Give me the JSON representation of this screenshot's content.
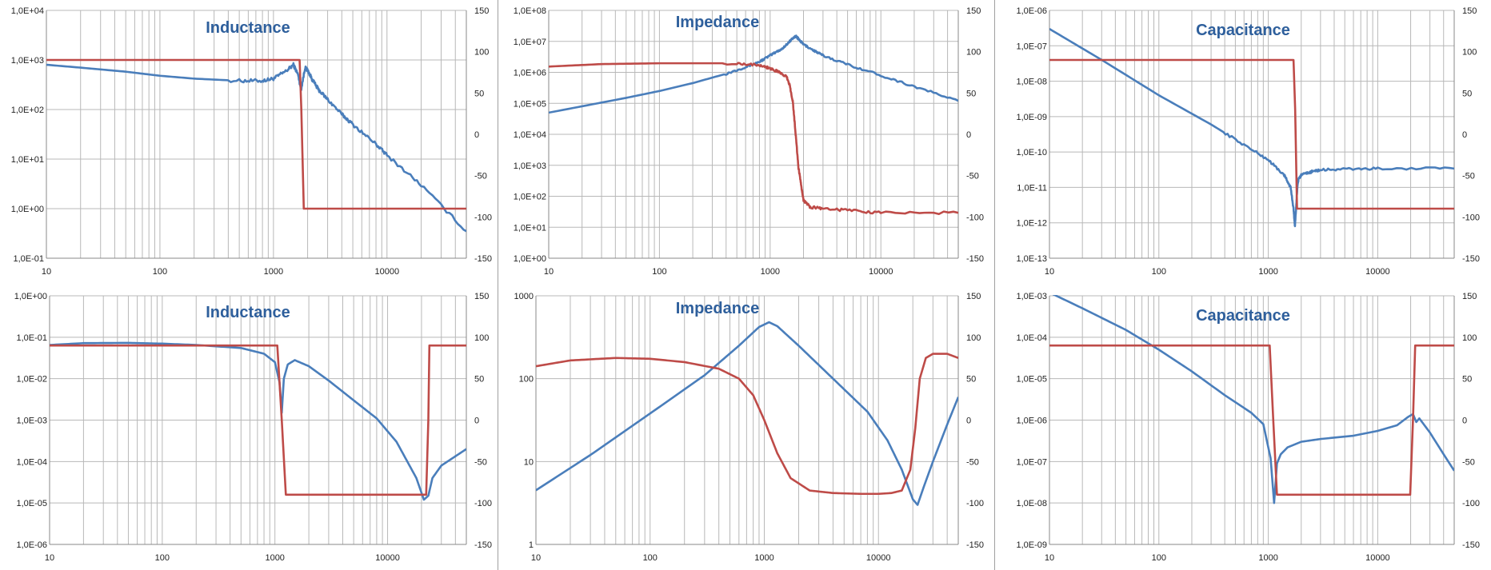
{
  "colors": {
    "magnitude": "#4a7ebb",
    "phase": "#be4b48",
    "grid": "#b8b8b8",
    "title": "#2e5f9c"
  },
  "chart_data": [
    {
      "type": "line",
      "title": "Inductance",
      "xlim": [
        10,
        50000
      ],
      "xscale": "log",
      "xticks": [
        "10",
        "100",
        "1000",
        "10000"
      ],
      "yscale": "log",
      "ylim": [
        0.1,
        10000
      ],
      "yticks": [
        "1,0E-01",
        "1,0E+00",
        "1,0E+01",
        "1,0E+02",
        "1,0E+03",
        "1,0E+04"
      ],
      "y2lim": [
        -150,
        150
      ],
      "y2ticks": [
        "-150",
        "-100",
        "-50",
        "0",
        "50",
        "100",
        "150"
      ],
      "series": [
        {
          "axis": "left",
          "color": "magnitude",
          "style": "wavy",
          "x": [
            10,
            20,
            50,
            100,
            200,
            500,
            800,
            1000,
            1300,
            1500,
            1650,
            1750,
            1900,
            2000,
            2200,
            2500,
            3000,
            4000,
            5000,
            8000,
            10000,
            20000,
            50000
          ],
          "y": [
            800,
            700,
            580,
            480,
            420,
            380,
            380,
            420,
            600,
            800,
            500,
            250,
            700,
            620,
            400,
            250,
            160,
            80,
            50,
            20,
            12,
            3,
            0.35
          ]
        },
        {
          "axis": "right",
          "color": "phase",
          "style": "smooth",
          "x": [
            10,
            1700,
            1760,
            1850,
            50000
          ],
          "y": [
            90,
            90,
            30,
            -90,
            -90
          ]
        }
      ]
    },
    {
      "type": "line",
      "title": "Impedance",
      "xlim": [
        10,
        50000
      ],
      "xscale": "log",
      "xticks": [
        "10",
        "100",
        "1000",
        "10000"
      ],
      "yscale": "log",
      "ylim": [
        1,
        100000000
      ],
      "yticks": [
        "1,0E+00",
        "1,0E+01",
        "1,0E+02",
        "1,0E+03",
        "1,0E+04",
        "1,0E+05",
        "1,0E+06",
        "1,0E+07",
        "1,0E+08"
      ],
      "y2lim": [
        -150,
        150
      ],
      "y2ticks": [
        "-150",
        "-100",
        "-50",
        "0",
        "50",
        "100",
        "150"
      ],
      "series": [
        {
          "axis": "left",
          "color": "magnitude",
          "style": "wavy",
          "x": [
            10,
            50,
            100,
            200,
            400,
            600,
            800,
            1000,
            1300,
            1500,
            1700,
            1800,
            2000,
            2500,
            3000,
            5000,
            10000,
            20000,
            50000
          ],
          "y": [
            50000,
            150000,
            250000,
            450000,
            900000,
            1500000,
            2200000,
            3500000,
            6000000,
            10000000,
            15000000,
            12000000,
            8000000,
            5000000,
            3500000,
            1800000,
            800000,
            350000,
            120000
          ]
        },
        {
          "axis": "right",
          "color": "phase",
          "style": "wavy",
          "x": [
            10,
            30,
            100,
            500,
            800,
            1000,
            1200,
            1400,
            1500,
            1600,
            1700,
            1800,
            1900,
            2000,
            2300,
            3000,
            5000,
            10000,
            50000
          ],
          "y": [
            82,
            85,
            86,
            86,
            84,
            80,
            75,
            70,
            60,
            40,
            0,
            -40,
            -60,
            -80,
            -88,
            -90,
            -92,
            -95,
            -95
          ]
        }
      ]
    },
    {
      "type": "line",
      "title": "Capacitance",
      "xlim": [
        10,
        50000
      ],
      "xscale": "log",
      "xticks": [
        "10",
        "100",
        "1000",
        "10000"
      ],
      "yscale": "log",
      "ylim": [
        1e-13,
        1e-06
      ],
      "yticks": [
        "1,0E-13",
        "1,0E-12",
        "1,0E-11",
        "1,0E-10",
        "1,0E-09",
        "1,0E-08",
        "1,0E-07",
        "1,0E-06"
      ],
      "y2lim": [
        -150,
        150
      ],
      "y2ticks": [
        "-150",
        "-100",
        "-50",
        "0",
        "50",
        "100",
        "150"
      ],
      "series": [
        {
          "axis": "left",
          "color": "magnitude",
          "style": "wavy",
          "x": [
            10,
            30,
            100,
            300,
            600,
            1000,
            1400,
            1600,
            1700,
            1750,
            1800,
            1850,
            1900,
            2000,
            2500,
            3000,
            5000,
            10000,
            50000
          ],
          "y": [
            3e-07,
            4e-08,
            4e-09,
            6e-10,
            1.6e-10,
            6e-11,
            2.2e-11,
            1e-11,
            2.5e-12,
            8e-13,
            3e-12,
            1.2e-11,
            1.8e-11,
            2.2e-11,
            2.8e-11,
            3.1e-11,
            3.3e-11,
            3.4e-11,
            3.4e-11
          ]
        },
        {
          "axis": "right",
          "color": "phase",
          "style": "smooth",
          "x": [
            10,
            1700,
            1760,
            1830,
            50000
          ],
          "y": [
            90,
            90,
            30,
            -90,
            -90
          ]
        }
      ]
    },
    {
      "type": "line",
      "title": "Inductance",
      "xlim": [
        10,
        50000
      ],
      "xscale": "log",
      "xticks": [
        "10",
        "100",
        "1000",
        "10000"
      ],
      "yscale": "log",
      "ylim": [
        1e-06,
        1
      ],
      "yticks": [
        "1,0E-06",
        "1,0E-05",
        "1,0E-04",
        "1,0E-03",
        "1,0E-02",
        "1,0E-01",
        "1,0E+00"
      ],
      "y2lim": [
        -150,
        150
      ],
      "y2ticks": [
        "-150",
        "-100",
        "-50",
        "0",
        "50",
        "100",
        "150"
      ],
      "series": [
        {
          "axis": "left",
          "color": "magnitude",
          "style": "smooth",
          "x": [
            10,
            20,
            50,
            100,
            200,
            500,
            800,
            1000,
            1100,
            1150,
            1200,
            1300,
            1500,
            2000,
            3000,
            5000,
            8000,
            12000,
            18000,
            21000,
            23000,
            25000,
            30000,
            50000
          ],
          "y": [
            0.065,
            0.072,
            0.073,
            0.07,
            0.065,
            0.055,
            0.04,
            0.025,
            0.008,
            0.0015,
            0.01,
            0.022,
            0.028,
            0.02,
            0.009,
            0.003,
            0.0011,
            0.0003,
            4e-05,
            1.2e-05,
            1.5e-05,
            4e-05,
            8e-05,
            0.0002
          ]
        },
        {
          "axis": "right",
          "color": "phase",
          "style": "smooth",
          "x": [
            10,
            1050,
            1150,
            1250,
            22000,
            23000,
            23500,
            50000
          ],
          "y": [
            90,
            90,
            0,
            -90,
            -90,
            0,
            90,
            90
          ]
        }
      ]
    },
    {
      "type": "line",
      "title": "Impedance",
      "xlim": [
        10,
        50000
      ],
      "xscale": "log",
      "xticks": [
        "10",
        "100",
        "1000",
        "10000"
      ],
      "yscale": "log",
      "ylim": [
        1,
        1000
      ],
      "yticks": [
        "1",
        "10",
        "100",
        "1000"
      ],
      "y2lim": [
        -150,
        150
      ],
      "y2ticks": [
        "-150",
        "-100",
        "-50",
        "0",
        "50",
        "100",
        "150"
      ],
      "series": [
        {
          "axis": "left",
          "color": "magnitude",
          "style": "smooth",
          "x": [
            10,
            30,
            100,
            300,
            600,
            900,
            1100,
            1300,
            2000,
            4000,
            8000,
            12000,
            16000,
            20000,
            22000,
            25000,
            30000,
            40000,
            50000
          ],
          "y": [
            4.5,
            12,
            38,
            110,
            250,
            420,
            480,
            430,
            250,
            100,
            40,
            18,
            8,
            3.5,
            3,
            5,
            10,
            28,
            60
          ]
        },
        {
          "axis": "right",
          "color": "phase",
          "style": "smooth",
          "x": [
            10,
            20,
            50,
            100,
            200,
            400,
            600,
            800,
            1000,
            1300,
            1700,
            2500,
            4000,
            7000,
            10000,
            13000,
            16000,
            19000,
            21000,
            23000,
            26000,
            30000,
            40000,
            50000
          ],
          "y": [
            65,
            72,
            75,
            74,
            70,
            62,
            50,
            30,
            0,
            -40,
            -70,
            -85,
            -88,
            -89,
            -89,
            -88,
            -85,
            -60,
            -10,
            50,
            75,
            80,
            80,
            75
          ]
        }
      ]
    },
    {
      "type": "line",
      "title": "Capacitance",
      "xlim": [
        10,
        50000
      ],
      "xscale": "log",
      "xticks": [
        "10",
        "100",
        "1000",
        "10000"
      ],
      "yscale": "log",
      "ylim": [
        1e-09,
        0.001
      ],
      "yticks": [
        "1,0E-09",
        "1,0E-08",
        "1,0E-07",
        "1,0E-06",
        "1,0E-05",
        "1,0E-04",
        "1,0E-03"
      ],
      "y2lim": [
        -150,
        150
      ],
      "y2ticks": [
        "-150",
        "-100",
        "-50",
        "0",
        "50",
        "100",
        "150"
      ],
      "series": [
        {
          "axis": "left",
          "color": "magnitude",
          "style": "smooth",
          "x": [
            10,
            20,
            50,
            100,
            200,
            400,
            700,
            900,
            1050,
            1130,
            1200,
            1300,
            1500,
            2000,
            3000,
            6000,
            10000,
            15000,
            19000,
            21000,
            22500,
            24000,
            30000,
            40000,
            50000
          ],
          "y": [
            0.0012,
            0.0005,
            0.00015,
            5e-05,
            1.5e-05,
            4e-06,
            1.5e-06,
            8e-07,
            1.2e-07,
            1e-08,
            9e-08,
            1.5e-07,
            2.2e-07,
            3e-07,
            3.5e-07,
            4.2e-07,
            5.5e-07,
            7.5e-07,
            1.2e-06,
            1.4e-06,
            9e-07,
            1.1e-06,
            5e-07,
            1.5e-07,
            6e-08
          ]
        },
        {
          "axis": "right",
          "color": "phase",
          "style": "smooth",
          "x": [
            10,
            1030,
            1110,
            1200,
            19800,
            21000,
            22000,
            50000
          ],
          "y": [
            90,
            90,
            0,
            -90,
            -90,
            0,
            90,
            90
          ]
        }
      ]
    }
  ]
}
